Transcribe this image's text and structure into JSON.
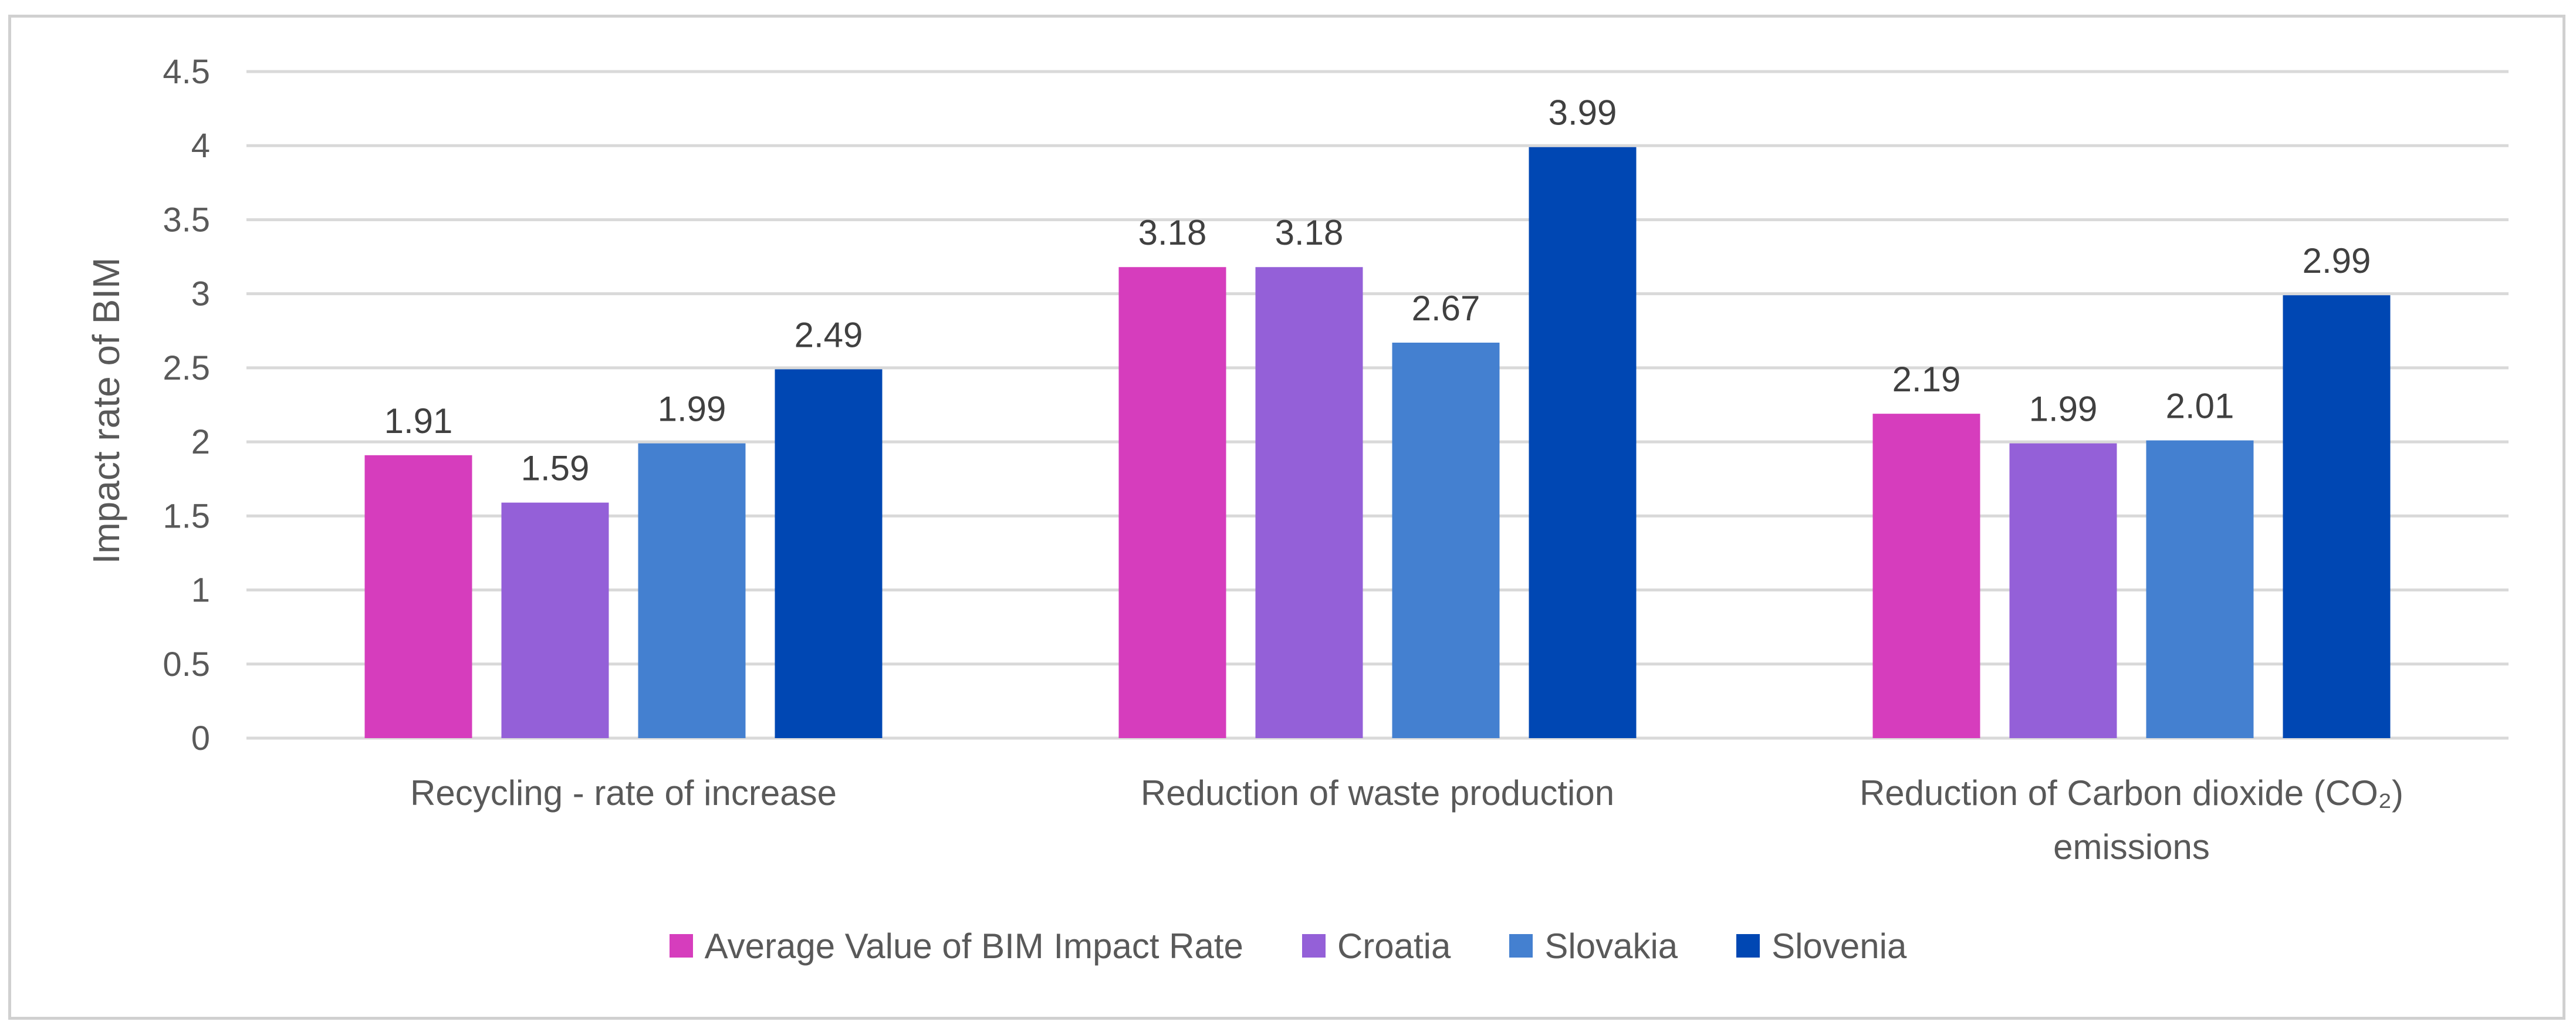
{
  "chart_data": {
    "type": "bar",
    "title": "",
    "xlabel": "",
    "ylabel": "Impact rate of BIM",
    "ylim": [
      0,
      4.5
    ],
    "yticks": [
      0,
      0.5,
      1,
      1.5,
      2,
      2.5,
      3,
      3.5,
      4,
      4.5
    ],
    "ytick_labels": [
      "0",
      "0.5",
      "1",
      "1.5",
      "2",
      "2.5",
      "3",
      "3.5",
      "4",
      "4.5"
    ],
    "grid": true,
    "legend_position": "bottom",
    "categories": [
      [
        "Recycling - rate of increase"
      ],
      [
        "Reduction of waste production"
      ],
      [
        "Reduction of Carbon dioxide (CO₂)",
        "emissions"
      ]
    ],
    "series": [
      {
        "name": "Average Value of BIM Impact Rate",
        "color": "#d63dbd",
        "values": [
          1.91,
          3.18,
          2.19
        ],
        "labels": [
          "1.91",
          "3.18",
          "2.19"
        ]
      },
      {
        "name": "Croatia",
        "color": "#9460d8",
        "values": [
          1.59,
          3.18,
          1.99
        ],
        "labels": [
          "1.59",
          "3.18",
          "1.99"
        ]
      },
      {
        "name": "Slovakia",
        "color": "#4480d0",
        "values": [
          1.99,
          2.67,
          2.01
        ],
        "labels": [
          "1.99",
          "2.67",
          "2.01"
        ]
      },
      {
        "name": "Slovenia",
        "color": "#0047b3",
        "values": [
          2.49,
          3.99,
          2.99
        ],
        "labels": [
          "2.49",
          "3.99",
          "2.99"
        ]
      }
    ]
  }
}
